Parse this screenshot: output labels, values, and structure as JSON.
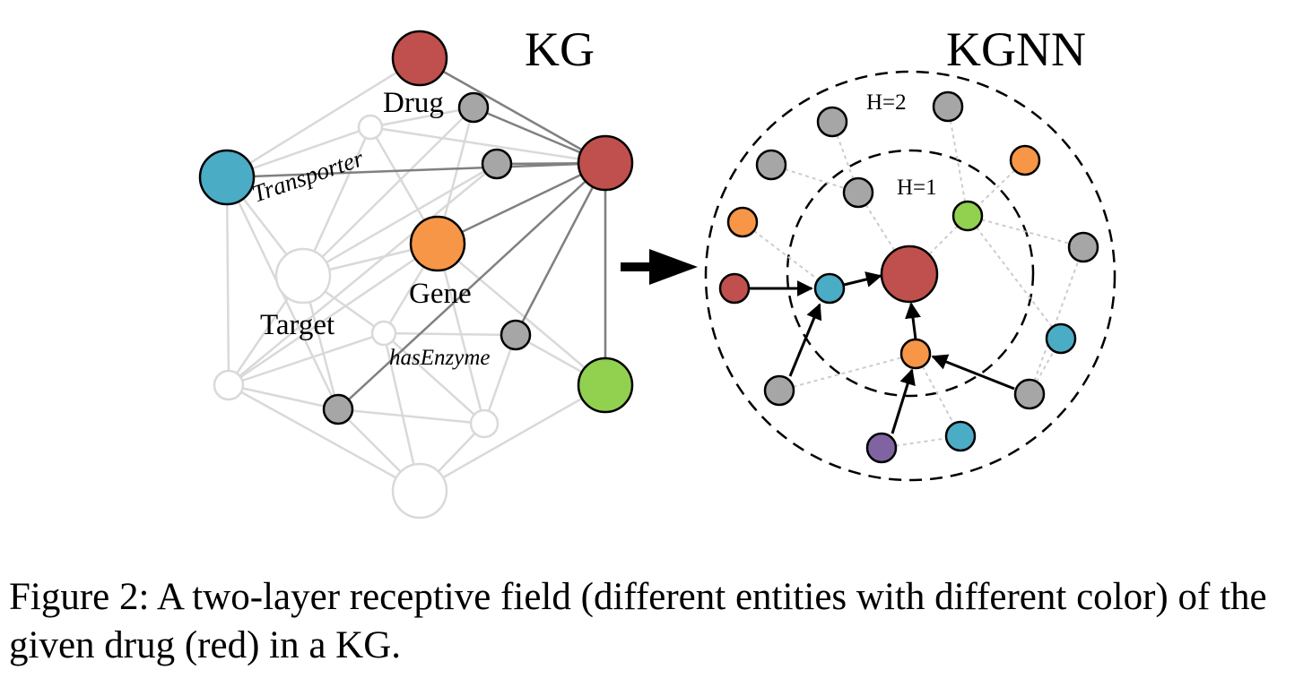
{
  "kg": {
    "title": "KG",
    "labels": {
      "drug": "Drug",
      "transporter": "Transporter",
      "gene": "Gene",
      "target": "Target",
      "has_enzyme": "hasEnzyme"
    }
  },
  "kgnn": {
    "title": "KGNN",
    "hop1_label": "H=1",
    "hop2_label": "H=2"
  },
  "colors": {
    "drug": "#c0504d",
    "transporter": "#4bacc6",
    "gene": "#f79646",
    "green": "#92d050",
    "purple": "#8064a2",
    "gray": "#a6a6a6",
    "faded": "#d9d9d9"
  },
  "caption": "Figure 2: A two-layer receptive field (different entities with different color) of the given drug (red) in a KG."
}
